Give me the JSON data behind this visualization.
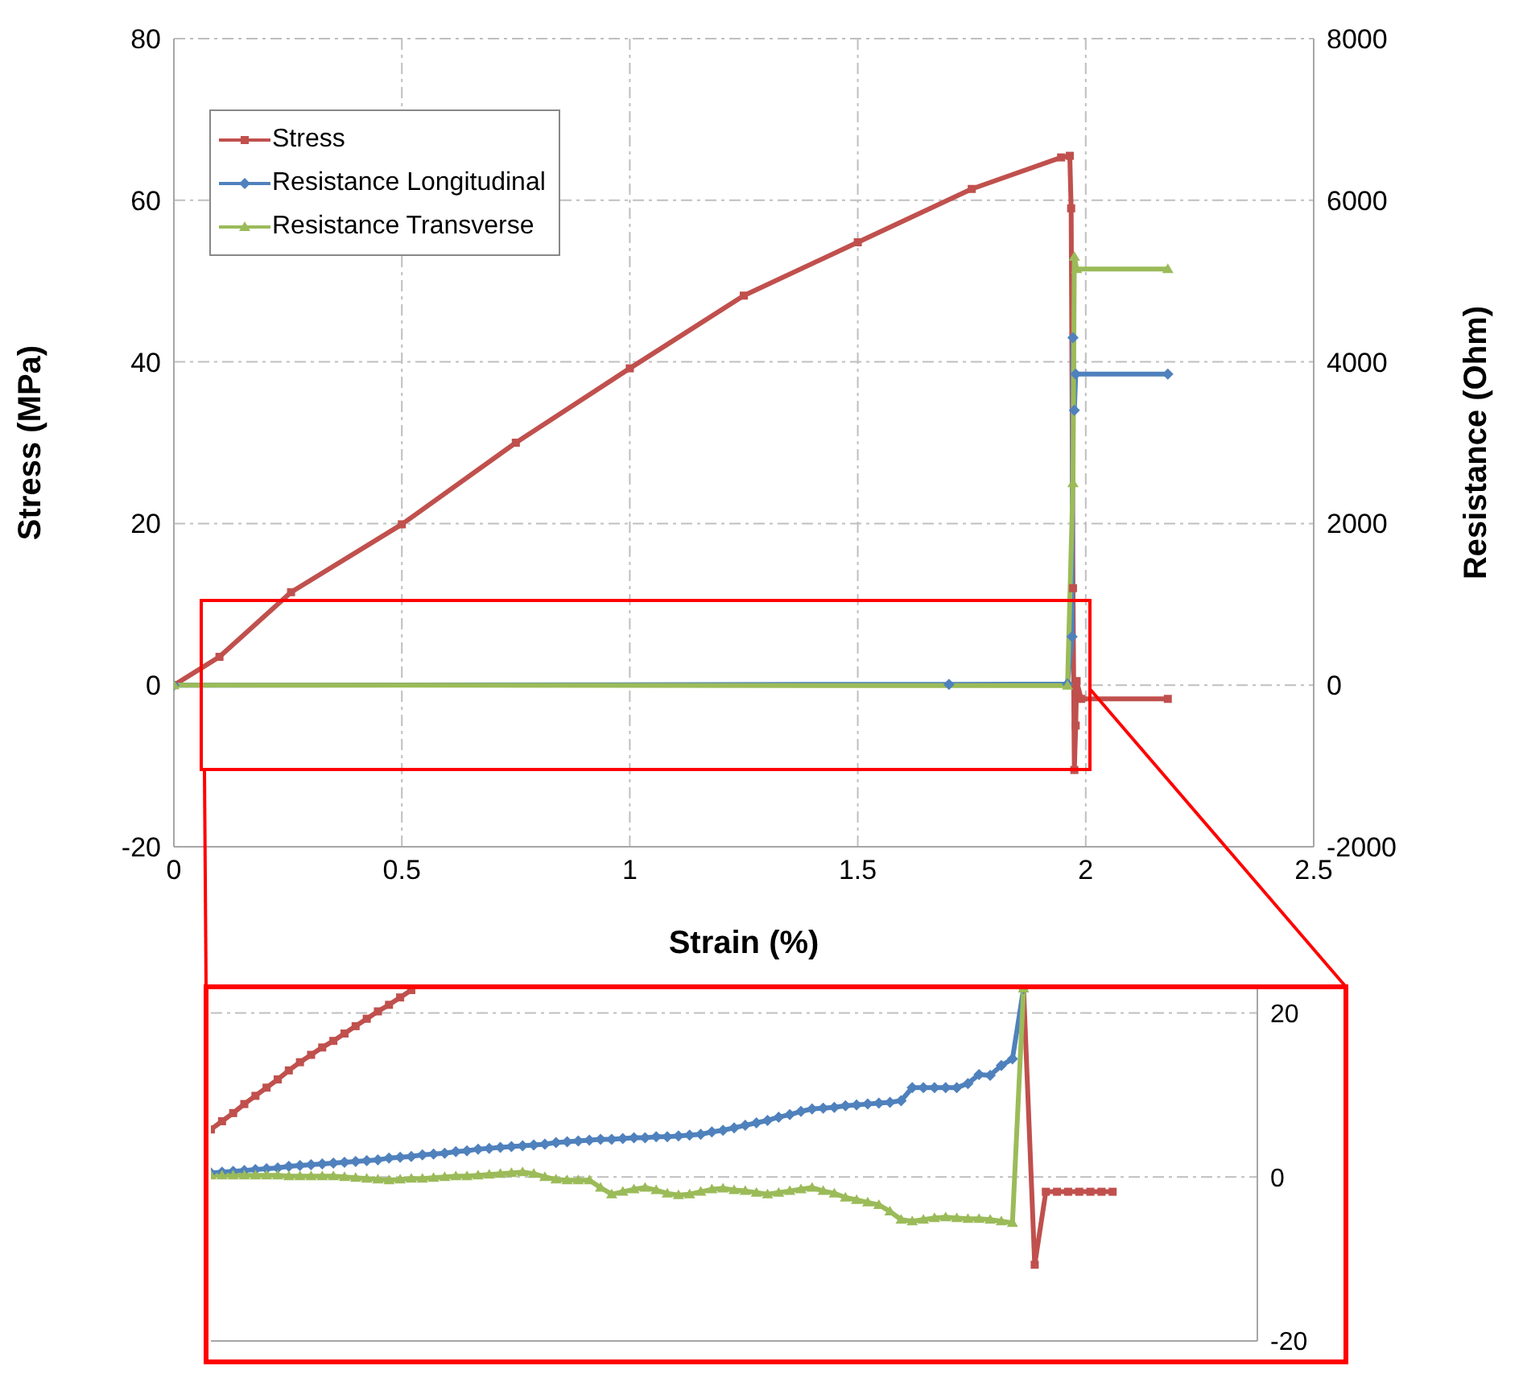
{
  "chart_data": [
    {
      "type": "line",
      "xlabel": "Strain (%)",
      "ylabel": "Stress (MPa)",
      "y2label": "Resistance (Ohm)",
      "xlim": [
        0,
        2.5
      ],
      "xticks": [
        0,
        0.5,
        1,
        1.5,
        2,
        2.5
      ],
      "ylim": [
        -20,
        80
      ],
      "yticks": [
        -20,
        0,
        20,
        40,
        60,
        80
      ],
      "y2lim": [
        -2000,
        8000
      ],
      "y2ticks": [
        -2000,
        0,
        2000,
        4000,
        6000,
        8000
      ],
      "grid": true,
      "legend": "top left",
      "series": [
        {
          "name": "Stress",
          "color": "#c0504d",
          "marker": "square",
          "x": [
            0,
            0.1,
            0.257,
            0.5,
            0.75,
            1,
            1.25,
            1.5,
            1.75,
            1.946,
            1.965,
            1.968,
            1.972,
            1.975,
            1.978,
            1.98,
            1.99,
            2.18
          ],
          "values": [
            0,
            3.5,
            11.5,
            19.9,
            30,
            39.2,
            48.2,
            54.8,
            61.4,
            65.3,
            65.5,
            59,
            12,
            -10.5,
            -5,
            0.5,
            -1.7,
            -1.7
          ]
        },
        {
          "name": "Resistance Longitudinal",
          "color": "#4f81bd",
          "marker": "diamond",
          "axis": "y2",
          "x": [
            0,
            1.7,
            1.96,
            1.97,
            1.972,
            1.975,
            1.978,
            2.18
          ],
          "values": [
            0,
            10,
            15,
            600,
            4300,
            3400,
            3850,
            3850
          ]
        },
        {
          "name": "Resistance Transverse",
          "color": "#9bbb59",
          "marker": "triangle",
          "axis": "y2",
          "x": [
            0,
            1.96,
            1.972,
            1.975,
            1.98,
            2.18
          ],
          "values": [
            0,
            -6,
            2500,
            5300,
            5150,
            5150
          ]
        }
      ]
    },
    {
      "type": "line",
      "categories": [
        null,
        null,
        null,
        null,
        null,
        null,
        null,
        null,
        null,
        null,
        null,
        null,
        null,
        null,
        null,
        null,
        null,
        null,
        null,
        null,
        null,
        null,
        null,
        null,
        null,
        null,
        null,
        null,
        null,
        null,
        null,
        null,
        null,
        null,
        null,
        null,
        null,
        null,
        null,
        null,
        null,
        null,
        null,
        null,
        null,
        null,
        null,
        null,
        null,
        null,
        null,
        null,
        null,
        null,
        null,
        null,
        null,
        null,
        null,
        null,
        null,
        null,
        null,
        null,
        null,
        null,
        null,
        null,
        null,
        null,
        null,
        null,
        null,
        null,
        null,
        null,
        null,
        null,
        null,
        null,
        null,
        null,
        null,
        null,
        null,
        null,
        null,
        null,
        null,
        null,
        null,
        null,
        null,
        null,
        null
      ],
      "ylim": [
        -20,
        23
      ],
      "yticks": [
        -20,
        0,
        20
      ],
      "grid": "y",
      "tick_labels": "y",
      "series": [
        {
          "color": "#c0504d",
          "marker": "square",
          "values": [
            5.8,
            6.8,
            7.8,
            8.9,
            9.9,
            10.9,
            11.9,
            13.0,
            14.0,
            14.9,
            15.8,
            16.6,
            17.5,
            18.4,
            19.3,
            20.2,
            21.0,
            21.9,
            22.8,
            null,
            null,
            null,
            null,
            null,
            null,
            null,
            null,
            null,
            null,
            null,
            null,
            null,
            null,
            null,
            null,
            null,
            null,
            null,
            null,
            null,
            null,
            null,
            null,
            null,
            null,
            null,
            null,
            null,
            null,
            null,
            null,
            null,
            null,
            null,
            null,
            null,
            null,
            null,
            null,
            null,
            null,
            null,
            null,
            null,
            null,
            null,
            null,
            null,
            null,
            null,
            null,
            null,
            null,
            null,
            null,
            null,
            null,
            null,
            null,
            null,
            null,
            null,
            null,
            null,
            null,
            null,
            null,
            null,
            null,
            null,
            null,
            null,
            null,
            null,
            null
          ]
        },
        {
          "color": "#c0504d",
          "marker": "square",
          "values": [
            null,
            null,
            null,
            null,
            null,
            null,
            null,
            null,
            null,
            null,
            null,
            null,
            null,
            null,
            null,
            null,
            null,
            null,
            null,
            null,
            null,
            null,
            null,
            null,
            null,
            null,
            null,
            null,
            null,
            null,
            null,
            null,
            null,
            null,
            null,
            null,
            null,
            null,
            null,
            null,
            null,
            null,
            null,
            null,
            null,
            null,
            null,
            null,
            null,
            null,
            null,
            null,
            null,
            null,
            null,
            null,
            null,
            null,
            null,
            null,
            null,
            null,
            null,
            null,
            null,
            null,
            null,
            null,
            null,
            null,
            null,
            null,
            null,
            23,
            -10.7,
            -1.8,
            -1.8,
            -1.8,
            -1.8,
            -1.8,
            -1.8,
            -1.8,
            null,
            null,
            null,
            null,
            null,
            null,
            null,
            null,
            null,
            null,
            null,
            null,
            null
          ]
        },
        {
          "color": "#4f81bd",
          "marker": "diamond",
          "values": [
            0.5,
            0.6,
            0.7,
            0.8,
            0.9,
            1.0,
            1.1,
            1.3,
            1.4,
            1.5,
            1.6,
            1.7,
            1.8,
            1.9,
            2.0,
            2.1,
            2.3,
            2.4,
            2.5,
            2.7,
            2.8,
            2.9,
            3.1,
            3.2,
            3.4,
            3.5,
            3.6,
            3.7,
            3.8,
            3.9,
            4.0,
            4.2,
            4.3,
            4.4,
            4.5,
            4.6,
            4.6,
            4.7,
            4.8,
            4.8,
            4.9,
            4.9,
            5.0,
            5.1,
            5.2,
            5.5,
            5.7,
            6.0,
            6.3,
            6.6,
            6.9,
            7.3,
            7.6,
            8.0,
            8.3,
            8.4,
            8.5,
            8.7,
            8.8,
            8.9,
            9.0,
            9.1,
            9.3,
            10.9,
            10.9,
            10.9,
            10.9,
            10.9,
            11.4,
            12.5,
            12.4,
            13.6,
            14.4,
            23,
            null,
            null,
            null,
            null,
            null,
            null,
            null,
            null,
            null,
            null,
            null,
            null,
            null,
            null,
            null,
            null,
            null,
            null,
            null,
            null,
            null
          ]
        },
        {
          "color": "#9bbb59",
          "marker": "triangle",
          "values": [
            0.2,
            0.2,
            0.2,
            0.2,
            0.2,
            0.2,
            0.2,
            0.1,
            0.1,
            0.1,
            0.1,
            0.1,
            0.0,
            -0.1,
            -0.2,
            -0.3,
            -0.4,
            -0.3,
            -0.2,
            -0.2,
            -0.1,
            0.0,
            0.1,
            0.1,
            0.2,
            0.3,
            0.4,
            0.5,
            0.6,
            0.4,
            0.0,
            -0.3,
            -0.4,
            -0.4,
            -0.4,
            -1.3,
            -2.1,
            -1.8,
            -1.5,
            -1.3,
            -1.6,
            -2.0,
            -2.2,
            -2.1,
            -1.8,
            -1.5,
            -1.4,
            -1.6,
            -1.7,
            -1.9,
            -2.1,
            -1.9,
            -1.7,
            -1.5,
            -1.3,
            -1.7,
            -2.0,
            -2.5,
            -2.8,
            -3.1,
            -3.4,
            -4.2,
            -5.2,
            -5.4,
            -5.2,
            -5.0,
            -4.9,
            -5.0,
            -5.1,
            -5.1,
            -5.2,
            -5.4,
            -5.6,
            23,
            null,
            null,
            null,
            null,
            null,
            null,
            null,
            null,
            null,
            null,
            null,
            null,
            null,
            null,
            null,
            null,
            null,
            null,
            null,
            null,
            null
          ]
        }
      ]
    }
  ]
}
